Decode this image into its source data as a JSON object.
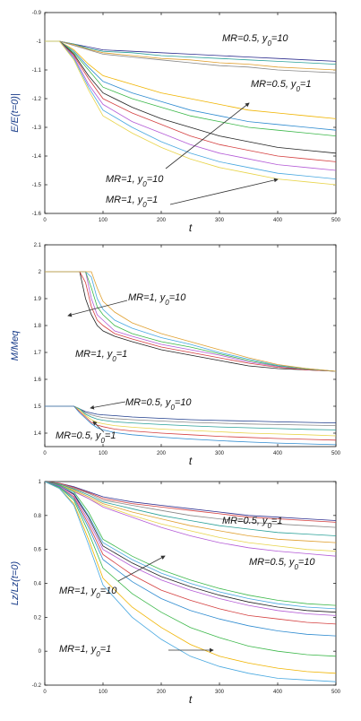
{
  "chart_data": [
    {
      "type": "line",
      "ylabel": "E/E(t=0)|",
      "xlabel": "t",
      "xlim": [
        0,
        500
      ],
      "ylim": [
        -1.6,
        -0.9
      ],
      "x_ticks": [
        "0",
        "100",
        "200",
        "300",
        "400",
        "500"
      ],
      "y_ticks": [
        "-0.9",
        "-1",
        "-1.1",
        "-1.2",
        "-1.3",
        "-1.4",
        "-1.5",
        "-1.6"
      ],
      "x": [
        0,
        25,
        50,
        75,
        100,
        150,
        200,
        250,
        300,
        350,
        400,
        450,
        500
      ],
      "series": [
        {
          "color": "#2e2e8f",
          "values": [
            -1,
            -1.0,
            -1.01,
            -1.02,
            -1.03,
            -1.035,
            -1.04,
            -1.045,
            -1.05,
            -1.055,
            -1.06,
            -1.065,
            -1.07
          ]
        },
        {
          "color": "#2aa198",
          "values": [
            -1,
            -1.0,
            -1.01,
            -1.025,
            -1.035,
            -1.04,
            -1.05,
            -1.055,
            -1.06,
            -1.065,
            -1.07,
            -1.075,
            -1.08
          ]
        },
        {
          "color": "#e0a030",
          "values": [
            -1,
            -1.0,
            -1.012,
            -1.028,
            -1.04,
            -1.05,
            -1.06,
            -1.065,
            -1.075,
            -1.08,
            -1.09,
            -1.095,
            -1.1
          ]
        },
        {
          "color": "#888888",
          "values": [
            -1,
            -1.0,
            -1.015,
            -1.03,
            -1.045,
            -1.055,
            -1.065,
            -1.075,
            -1.085,
            -1.09,
            -1.1,
            -1.105,
            -1.11
          ]
        },
        {
          "color": "#f0b400",
          "values": [
            -1,
            -1.0,
            -1.03,
            -1.08,
            -1.12,
            -1.15,
            -1.18,
            -1.2,
            -1.22,
            -1.24,
            -1.25,
            -1.26,
            -1.27
          ]
        },
        {
          "color": "#2e8bd0",
          "values": [
            -1,
            -1.0,
            -1.035,
            -1.09,
            -1.14,
            -1.18,
            -1.21,
            -1.24,
            -1.26,
            -1.28,
            -1.29,
            -1.3,
            -1.31
          ]
        },
        {
          "color": "#3cb84a",
          "values": [
            -1,
            -1.0,
            -1.04,
            -1.1,
            -1.16,
            -1.2,
            -1.23,
            -1.26,
            -1.28,
            -1.3,
            -1.31,
            -1.32,
            -1.33
          ]
        },
        {
          "color": "#222222",
          "values": [
            -1,
            -1.0,
            -1.045,
            -1.12,
            -1.18,
            -1.23,
            -1.27,
            -1.3,
            -1.33,
            -1.35,
            -1.37,
            -1.38,
            -1.39
          ]
        },
        {
          "color": "#d43f3f",
          "values": [
            -1,
            -1.0,
            -1.05,
            -1.13,
            -1.2,
            -1.25,
            -1.29,
            -1.33,
            -1.36,
            -1.38,
            -1.4,
            -1.41,
            -1.42
          ]
        },
        {
          "color": "#b45bd6",
          "values": [
            -1,
            -1.0,
            -1.055,
            -1.15,
            -1.22,
            -1.28,
            -1.32,
            -1.36,
            -1.39,
            -1.41,
            -1.43,
            -1.44,
            -1.45
          ]
        },
        {
          "color": "#48a8e0",
          "values": [
            -1,
            -1.0,
            -1.06,
            -1.16,
            -1.24,
            -1.3,
            -1.35,
            -1.39,
            -1.42,
            -1.44,
            -1.46,
            -1.47,
            -1.48
          ]
        },
        {
          "color": "#e8d44a",
          "values": [
            -1,
            -1.0,
            -1.065,
            -1.17,
            -1.26,
            -1.32,
            -1.37,
            -1.41,
            -1.44,
            -1.46,
            -1.48,
            -1.49,
            -1.5
          ]
        }
      ],
      "annotations": [
        {
          "text": "MR=0.5, y0=10"
        },
        {
          "text": "MR=0.5, y0=1"
        },
        {
          "text": "MR=1, y0=10"
        },
        {
          "text": "MR=1, y0=1"
        }
      ]
    },
    {
      "type": "line",
      "ylabel": "M/Meq",
      "xlabel": "t",
      "xlim": [
        0,
        500
      ],
      "ylim": [
        1.35,
        2.1
      ],
      "x_ticks": [
        "0",
        "100",
        "200",
        "300",
        "400",
        "500"
      ],
      "y_ticks": [
        "1.4",
        "1.5",
        "1.6",
        "1.7",
        "1.8",
        "1.9",
        "2",
        "2.1"
      ],
      "x": [
        0,
        50,
        60,
        70,
        80,
        90,
        100,
        120,
        150,
        200,
        250,
        300,
        350,
        400,
        450,
        500
      ],
      "series": [
        {
          "color": "#222222",
          "values": [
            2,
            2,
            2,
            1.9,
            1.84,
            1.8,
            1.78,
            1.76,
            1.74,
            1.71,
            1.69,
            1.67,
            1.65,
            1.64,
            1.635,
            1.63
          ]
        },
        {
          "color": "#d43f3f",
          "values": [
            2,
            2,
            2,
            1.96,
            1.87,
            1.82,
            1.8,
            1.77,
            1.75,
            1.72,
            1.7,
            1.68,
            1.66,
            1.645,
            1.635,
            1.63
          ]
        },
        {
          "color": "#b45bd6",
          "values": [
            2,
            2,
            2,
            2,
            1.9,
            1.84,
            1.82,
            1.78,
            1.76,
            1.73,
            1.71,
            1.69,
            1.665,
            1.648,
            1.637,
            1.63
          ]
        },
        {
          "color": "#3cb84a",
          "values": [
            2,
            2,
            2,
            2,
            1.94,
            1.87,
            1.84,
            1.8,
            1.77,
            1.74,
            1.72,
            1.695,
            1.67,
            1.65,
            1.638,
            1.63
          ]
        },
        {
          "color": "#48a8e0",
          "values": [
            2,
            2,
            2,
            2,
            1.98,
            1.9,
            1.86,
            1.82,
            1.79,
            1.755,
            1.73,
            1.7,
            1.675,
            1.652,
            1.64,
            1.63
          ]
        },
        {
          "color": "#e0a030",
          "values": [
            2,
            2,
            2,
            2,
            2,
            1.94,
            1.89,
            1.85,
            1.81,
            1.77,
            1.74,
            1.71,
            1.68,
            1.655,
            1.64,
            1.63
          ]
        },
        {
          "color": "#1e3c8c",
          "values": [
            1.5,
            1.5,
            1.49,
            1.48,
            1.475,
            1.47,
            1.468,
            1.465,
            1.46,
            1.455,
            1.45,
            1.447,
            1.445,
            1.442,
            1.44,
            1.438
          ]
        },
        {
          "color": "#888888",
          "values": [
            1.5,
            1.5,
            1.49,
            1.475,
            1.468,
            1.462,
            1.458,
            1.454,
            1.45,
            1.445,
            1.44,
            1.437,
            1.434,
            1.432,
            1.43,
            1.428
          ]
        },
        {
          "color": "#2aa198",
          "values": [
            1.5,
            1.5,
            1.49,
            1.47,
            1.46,
            1.452,
            1.448,
            1.442,
            1.438,
            1.432,
            1.427,
            1.423,
            1.42,
            1.417,
            1.414,
            1.412
          ]
        },
        {
          "color": "#e8d44a",
          "values": [
            1.5,
            1.5,
            1.485,
            1.465,
            1.45,
            1.44,
            1.435,
            1.428,
            1.422,
            1.415,
            1.41,
            1.405,
            1.4,
            1.397,
            1.394,
            1.39
          ]
        },
        {
          "color": "#d43f3f",
          "values": [
            1.5,
            1.5,
            1.48,
            1.46,
            1.44,
            1.43,
            1.424,
            1.415,
            1.408,
            1.4,
            1.394,
            1.388,
            1.384,
            1.38,
            1.377,
            1.374
          ]
        },
        {
          "color": "#2e8bd0",
          "values": [
            1.5,
            1.5,
            1.475,
            1.455,
            1.435,
            1.42,
            1.412,
            1.402,
            1.394,
            1.385,
            1.378,
            1.372,
            1.367,
            1.363,
            1.36,
            1.357
          ]
        }
      ],
      "annotations": [
        {
          "text": "MR=1, y0=10"
        },
        {
          "text": "MR=1, y0=1"
        },
        {
          "text": "MR=0.5, y0=10"
        },
        {
          "text": "MR=0.5, y0=1"
        }
      ]
    },
    {
      "type": "line",
      "ylabel": "Lz/Lz(t=0)",
      "xlabel": "t",
      "xlim": [
        0,
        500
      ],
      "ylim": [
        -0.2,
        1
      ],
      "x_ticks": [
        "0",
        "100",
        "200",
        "300",
        "400",
        "500"
      ],
      "y_ticks": [
        "1",
        "0.8",
        "0.6",
        "0.4",
        "0.2",
        "0",
        "-0.2"
      ],
      "x": [
        0,
        25,
        50,
        75,
        100,
        150,
        200,
        250,
        300,
        350,
        400,
        450,
        500
      ],
      "series": [
        {
          "color": "#2e2e8f",
          "values": [
            1,
            0.99,
            0.97,
            0.94,
            0.91,
            0.88,
            0.86,
            0.84,
            0.82,
            0.8,
            0.79,
            0.78,
            0.77
          ]
        },
        {
          "color": "#d43f3f",
          "values": [
            1,
            0.99,
            0.965,
            0.935,
            0.9,
            0.87,
            0.85,
            0.83,
            0.81,
            0.79,
            0.78,
            0.77,
            0.76
          ]
        },
        {
          "color": "#888888",
          "values": [
            1,
            0.985,
            0.96,
            0.93,
            0.89,
            0.86,
            0.83,
            0.8,
            0.78,
            0.76,
            0.75,
            0.74,
            0.73
          ]
        },
        {
          "color": "#2aa198",
          "values": [
            1,
            0.985,
            0.955,
            0.92,
            0.88,
            0.84,
            0.8,
            0.77,
            0.74,
            0.72,
            0.7,
            0.69,
            0.68
          ]
        },
        {
          "color": "#e0a030",
          "values": [
            1,
            0.98,
            0.95,
            0.91,
            0.87,
            0.82,
            0.78,
            0.74,
            0.71,
            0.68,
            0.66,
            0.65,
            0.64
          ]
        },
        {
          "color": "#e8d44a",
          "values": [
            1,
            0.98,
            0.945,
            0.9,
            0.86,
            0.8,
            0.75,
            0.71,
            0.67,
            0.64,
            0.62,
            0.6,
            0.59
          ]
        },
        {
          "color": "#b45bd6",
          "values": [
            1,
            0.98,
            0.94,
            0.9,
            0.85,
            0.79,
            0.73,
            0.68,
            0.64,
            0.61,
            0.59,
            0.575,
            0.56
          ]
        },
        {
          "color": "#3cb84a",
          "values": [
            1,
            0.98,
            0.94,
            0.82,
            0.66,
            0.56,
            0.48,
            0.42,
            0.37,
            0.33,
            0.3,
            0.28,
            0.27
          ]
        },
        {
          "color": "#48a8e0",
          "values": [
            1,
            0.975,
            0.93,
            0.8,
            0.64,
            0.54,
            0.46,
            0.4,
            0.35,
            0.31,
            0.28,
            0.26,
            0.25
          ]
        },
        {
          "color": "#222222",
          "values": [
            1,
            0.975,
            0.925,
            0.79,
            0.62,
            0.52,
            0.44,
            0.38,
            0.33,
            0.29,
            0.26,
            0.24,
            0.23
          ]
        },
        {
          "color": "#b45bd6",
          "values": [
            1,
            0.975,
            0.92,
            0.77,
            0.6,
            0.5,
            0.42,
            0.36,
            0.31,
            0.27,
            0.24,
            0.22,
            0.21
          ]
        },
        {
          "color": "#d43f3f",
          "values": [
            1,
            0.97,
            0.91,
            0.75,
            0.57,
            0.45,
            0.36,
            0.3,
            0.25,
            0.21,
            0.19,
            0.17,
            0.16
          ]
        },
        {
          "color": "#2e8bd0",
          "values": [
            1,
            0.97,
            0.9,
            0.73,
            0.54,
            0.41,
            0.31,
            0.24,
            0.19,
            0.15,
            0.12,
            0.1,
            0.09
          ]
        },
        {
          "color": "#3cb84a",
          "values": [
            1,
            0.965,
            0.89,
            0.7,
            0.49,
            0.34,
            0.23,
            0.14,
            0.08,
            0.03,
            0.0,
            -0.02,
            -0.03
          ]
        },
        {
          "color": "#f0b400",
          "values": [
            1,
            0.96,
            0.87,
            0.66,
            0.43,
            0.26,
            0.14,
            0.04,
            -0.03,
            -0.07,
            -0.1,
            -0.12,
            -0.13
          ]
        },
        {
          "color": "#48a8e0",
          "values": [
            1,
            0.96,
            0.86,
            0.63,
            0.39,
            0.2,
            0.07,
            -0.03,
            -0.09,
            -0.13,
            -0.16,
            -0.17,
            -0.18
          ]
        }
      ],
      "annotations": [
        {
          "text": "MR=0.5, y0=1"
        },
        {
          "text": "MR=0.5, y0=10"
        },
        {
          "text": "MR=1, y0=10"
        },
        {
          "text": "MR=1, y0=1"
        }
      ]
    }
  ]
}
